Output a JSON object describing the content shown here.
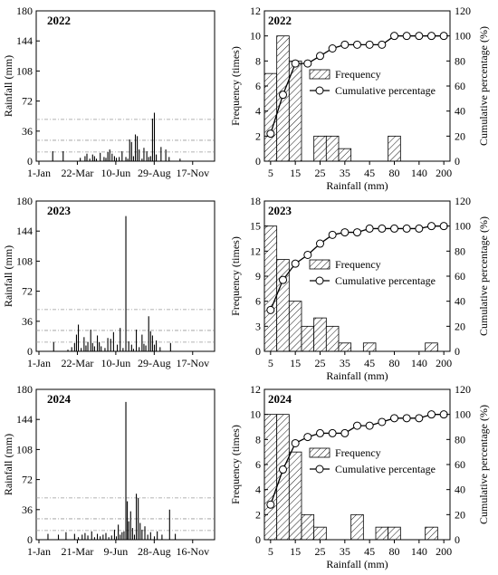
{
  "chart_data": [
    {
      "type": "bar",
      "title": "2022",
      "ylabel": "Rainfall (mm)",
      "ylim": [
        0,
        180
      ],
      "yticks": [
        "0",
        "36",
        "72",
        "108",
        "144",
        "180"
      ],
      "xtick_labels": [
        "1-Jan",
        "22-Mar",
        "10-Jun",
        "29-Aug",
        "17-Nov"
      ],
      "xlim": [
        1,
        365
      ],
      "reference_lines": [
        11,
        25,
        50
      ],
      "series": [
        {
          "x": [
            30,
            52,
            88,
            98,
            102,
            108,
            114,
            118,
            122,
            130,
            138,
            142,
            146,
            150,
            155,
            160,
            164,
            170,
            176,
            184,
            188,
            192,
            196,
            200,
            204,
            208,
            212,
            218,
            222,
            228,
            232,
            236,
            240,
            244,
            248,
            258,
            268,
            275,
            298
          ],
          "values": [
            12,
            12,
            4,
            6,
            9,
            3,
            8,
            6,
            3,
            10,
            5,
            4,
            11,
            14,
            9,
            6,
            4,
            5,
            12,
            5,
            3,
            26,
            23,
            6,
            32,
            30,
            14,
            3,
            16,
            12,
            5,
            6,
            51,
            58,
            8,
            17,
            14,
            5,
            3
          ]
        }
      ]
    },
    {
      "type": "bar",
      "title": "2022",
      "xlabel": "Rainfall (mm)",
      "ylabel": "Frequency (times)",
      "y2label": "Cumulative percentage (%)",
      "ylim": [
        0,
        12
      ],
      "y2lim": [
        0,
        120
      ],
      "yticks": [
        "0",
        "2",
        "4",
        "6",
        "8",
        "10",
        "12"
      ],
      "y2ticks": [
        "0",
        "20",
        "40",
        "60",
        "80",
        "100",
        "120"
      ],
      "categories": [
        "5",
        "10",
        "15",
        "20",
        "25",
        "30",
        "35",
        "40",
        "45",
        "50",
        "80",
        "100",
        "140",
        "180",
        "200"
      ],
      "xtick_labels": [
        "5",
        "15",
        "25",
        "35",
        "45",
        "80",
        "140",
        "200"
      ],
      "legend": [
        "Frequency",
        "Cumulative percentage"
      ],
      "legend_position": "right",
      "series": [
        {
          "name": "Frequency",
          "values": [
            7,
            10,
            8,
            0,
            2,
            2,
            1,
            0,
            0,
            0,
            2,
            0,
            0,
            0,
            0
          ]
        },
        {
          "name": "Cumulative percentage",
          "values": [
            22,
            53,
            78,
            78,
            84,
            90,
            93,
            93,
            93,
            93,
            100,
            100,
            100,
            100,
            100
          ]
        }
      ]
    },
    {
      "type": "bar",
      "title": "2023",
      "ylabel": "Rainfall (mm)",
      "ylim": [
        0,
        180
      ],
      "yticks": [
        "0",
        "36",
        "72",
        "108",
        "144",
        "180"
      ],
      "xtick_labels": [
        "1-Jan",
        "22-Mar",
        "10-Jun",
        "29-Aug",
        "17-Nov"
      ],
      "xlim": [
        1,
        365
      ],
      "reference_lines": [
        11,
        25,
        50
      ],
      "series": [
        {
          "x": [
            32,
            62,
            70,
            76,
            80,
            84,
            90,
            96,
            100,
            104,
            110,
            114,
            118,
            124,
            128,
            132,
            140,
            146,
            152,
            158,
            166,
            172,
            178,
            184,
            190,
            196,
            200,
            206,
            212,
            218,
            222,
            226,
            232,
            236,
            240,
            244,
            248,
            256,
            278
          ],
          "values": [
            11,
            2,
            5,
            10,
            20,
            32,
            4,
            17,
            7,
            11,
            26,
            10,
            6,
            19,
            11,
            6,
            4,
            16,
            15,
            23,
            8,
            28,
            4,
            162,
            12,
            8,
            3,
            26,
            5,
            20,
            9,
            7,
            42,
            24,
            19,
            8,
            13,
            5,
            10
          ]
        }
      ]
    },
    {
      "type": "bar",
      "title": "2023",
      "xlabel": "Rainfall (mm)",
      "ylabel": "Frequency (times)",
      "y2label": "Cumulative percentage (%)",
      "ylim": [
        0,
        18
      ],
      "y2lim": [
        0,
        120
      ],
      "yticks": [
        "0",
        "3",
        "6",
        "9",
        "12",
        "15",
        "18"
      ],
      "y2ticks": [
        "0",
        "20",
        "40",
        "60",
        "80",
        "100",
        "120"
      ],
      "categories": [
        "5",
        "10",
        "15",
        "20",
        "25",
        "30",
        "35",
        "40",
        "45",
        "50",
        "80",
        "100",
        "140",
        "180",
        "200"
      ],
      "xtick_labels": [
        "5",
        "15",
        "25",
        "35",
        "45",
        "80",
        "140",
        "200"
      ],
      "legend": [
        "Frequency",
        "Cumulative percentage"
      ],
      "legend_position": "right",
      "series": [
        {
          "name": "Frequency",
          "values": [
            15,
            11,
            6,
            3,
            4,
            3,
            1,
            0,
            1,
            0,
            0,
            0,
            0,
            1,
            0
          ]
        },
        {
          "name": "Cumulative percentage",
          "values": [
            33,
            57,
            70,
            77,
            86,
            93,
            95,
            95,
            98,
            98,
            98,
            98,
            98,
            100,
            100
          ]
        }
      ]
    },
    {
      "type": "bar",
      "title": "2024",
      "ylabel": "Rainfall (mm)",
      "ylim": [
        0,
        180
      ],
      "yticks": [
        "0",
        "36",
        "72",
        "108",
        "144",
        "180"
      ],
      "xtick_labels": [
        "1-Jan",
        "21-Mar",
        "9-Jun",
        "28-Aug",
        "16-Nov"
      ],
      "xlim": [
        1,
        365
      ],
      "reference_lines": [
        11,
        25,
        50
      ],
      "series": [
        {
          "x": [
            20,
            42,
            58,
            76,
            84,
            92,
            98,
            104,
            112,
            118,
            124,
            130,
            136,
            142,
            148,
            154,
            160,
            164,
            168,
            172,
            176,
            180,
            184,
            187,
            190,
            194,
            198,
            202,
            206,
            210,
            214,
            218,
            224,
            230,
            236,
            244,
            250,
            260,
            276,
            288
          ],
          "values": [
            7,
            6,
            9,
            7,
            3,
            6,
            8,
            5,
            10,
            3,
            7,
            4,
            6,
            8,
            3,
            5,
            12,
            4,
            18,
            6,
            9,
            10,
            165,
            46,
            22,
            34,
            14,
            6,
            55,
            50,
            20,
            12,
            16,
            6,
            9,
            4,
            10,
            6,
            36,
            7
          ]
        }
      ]
    },
    {
      "type": "bar",
      "title": "2024",
      "xlabel": "Rainfall (mm)",
      "ylabel": "Frequency (times)",
      "y2label": "Cumulative percentage (%)",
      "ylim": [
        0,
        12
      ],
      "y2lim": [
        0,
        120
      ],
      "yticks": [
        "0",
        "2",
        "4",
        "6",
        "8",
        "10",
        "12"
      ],
      "y2ticks": [
        "0",
        "20",
        "40",
        "60",
        "80",
        "100",
        "120"
      ],
      "categories": [
        "5",
        "10",
        "15",
        "20",
        "25",
        "30",
        "35",
        "40",
        "45",
        "50",
        "80",
        "100",
        "140",
        "180",
        "200"
      ],
      "xtick_labels": [
        "5",
        "15",
        "25",
        "35",
        "45",
        "80",
        "140",
        "200"
      ],
      "legend": [
        "Frequency",
        "Cumulative percentage"
      ],
      "legend_position": "right",
      "series": [
        {
          "name": "Frequency",
          "values": [
            10,
            10,
            7,
            2,
            1,
            0,
            0,
            2,
            0,
            1,
            1,
            0,
            0,
            1,
            0
          ]
        },
        {
          "name": "Cumulative percentage",
          "values": [
            28,
            56,
            77,
            82,
            85,
            85,
            85,
            91,
            91,
            94,
            97,
            97,
            97,
            100,
            100
          ]
        }
      ]
    }
  ]
}
